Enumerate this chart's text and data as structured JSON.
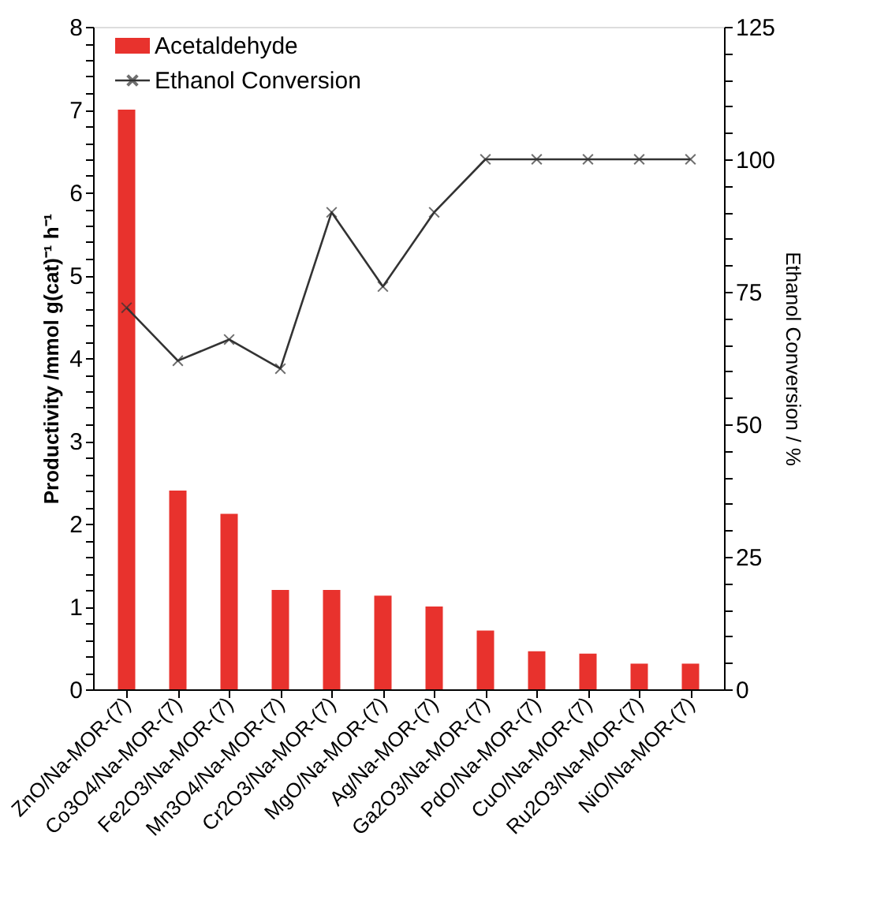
{
  "chart_data": {
    "type": "bar",
    "categories": [
      "ZnO/Na-MOR-(7)",
      "Co3O4/Na-MOR-(7)",
      "Fe2O3/Na-MOR-(7)",
      "Mn3O4/Na-MOR-(7)",
      "Cr2O3/Na-MOR-(7)",
      "MgO/Na-MOR-(7)",
      "Ag/Na-MOR-(7)",
      "Ga2O3/Na-MOR-(7)",
      "PdO/Na-MOR-(7)",
      "CuO/Na-MOR-(7)",
      "Ru2O3/Na-MOR-(7)",
      "NiO/Na-MOR-(7)"
    ],
    "series": [
      {
        "name": "Acetaldehyde",
        "color": "#e8322d",
        "values": [
          7.0,
          2.4,
          2.12,
          1.2,
          1.2,
          1.13,
          1.0,
          0.71,
          0.46,
          0.43,
          0.31,
          0.31
        ]
      },
      {
        "name": "Ethanol Conversion",
        "type": "line",
        "axis": "y2",
        "color": "#333333",
        "marker": "cross",
        "values": [
          72,
          62,
          66,
          60.5,
          90,
          76,
          90,
          100,
          100,
          100,
          100,
          100
        ]
      }
    ],
    "ylabel": "Productivity /mmol g(cat)⁻¹ h⁻¹",
    "y2label": "Ethanol Conversion / %",
    "ylim": [
      0,
      8
    ],
    "yticks": [
      0,
      {
        "value": 0.2,
        "label": null
      },
      {
        "value": 0.4,
        "label": null
      },
      {
        "value": 0.6,
        "label": null
      },
      {
        "value": 0.8,
        "label": null
      },
      1,
      {
        "value": 1.2,
        "label": null
      },
      {
        "value": 1.4,
        "label": null
      },
      {
        "value": 1.6,
        "label": null
      },
      {
        "value": 1.8,
        "label": null
      },
      2,
      {
        "value": 2.2,
        "label": null
      },
      {
        "value": 2.4,
        "label": null
      },
      {
        "value": 2.6,
        "label": null
      },
      {
        "value": 2.8,
        "label": null
      },
      3,
      {
        "value": 3.2,
        "label": null
      },
      {
        "value": 3.4,
        "label": null
      },
      {
        "value": 3.6,
        "label": null
      },
      {
        "value": 3.8,
        "label": null
      },
      4,
      {
        "value": 4.2,
        "label": null
      },
      {
        "value": 4.4,
        "label": null
      },
      {
        "value": 4.6,
        "label": null
      },
      {
        "value": 4.8,
        "label": null
      },
      5,
      {
        "value": 5.2,
        "label": null
      },
      {
        "value": 5.4,
        "label": null
      },
      {
        "value": 5.6,
        "label": null
      },
      {
        "value": 5.8,
        "label": null
      },
      6,
      {
        "value": 6.2,
        "label": null
      },
      {
        "value": 6.4,
        "label": null
      },
      {
        "value": 6.6,
        "label": null
      },
      {
        "value": 6.8,
        "label": null
      },
      7,
      {
        "value": 7.2,
        "label": null
      },
      {
        "value": 7.4,
        "label": null
      },
      {
        "value": 7.6,
        "label": null
      },
      {
        "value": 7.8,
        "label": null
      },
      8
    ],
    "y2lim": [
      0,
      125
    ],
    "y2ticks": [
      0,
      {
        "value": 5,
        "label": null
      },
      {
        "value": 10,
        "label": null
      },
      {
        "value": 15,
        "label": null
      },
      {
        "value": 20,
        "label": null
      },
      25,
      {
        "value": 30,
        "label": null
      },
      {
        "value": 35,
        "label": null
      },
      {
        "value": 40,
        "label": null
      },
      {
        "value": 45,
        "label": null
      },
      50,
      {
        "value": 55,
        "label": null
      },
      {
        "value": 60,
        "label": null
      },
      {
        "value": 65,
        "label": null
      },
      {
        "value": 70,
        "label": null
      },
      75,
      {
        "value": 80,
        "label": null
      },
      {
        "value": 85,
        "label": null
      },
      {
        "value": 90,
        "label": null
      },
      {
        "value": 95,
        "label": null
      },
      100,
      {
        "value": 105,
        "label": null
      },
      {
        "value": 110,
        "label": null
      },
      {
        "value": 115,
        "label": null
      },
      {
        "value": 120,
        "label": null
      },
      125
    ],
    "legend": "top left",
    "grid": false,
    "line_style": "solid"
  }
}
